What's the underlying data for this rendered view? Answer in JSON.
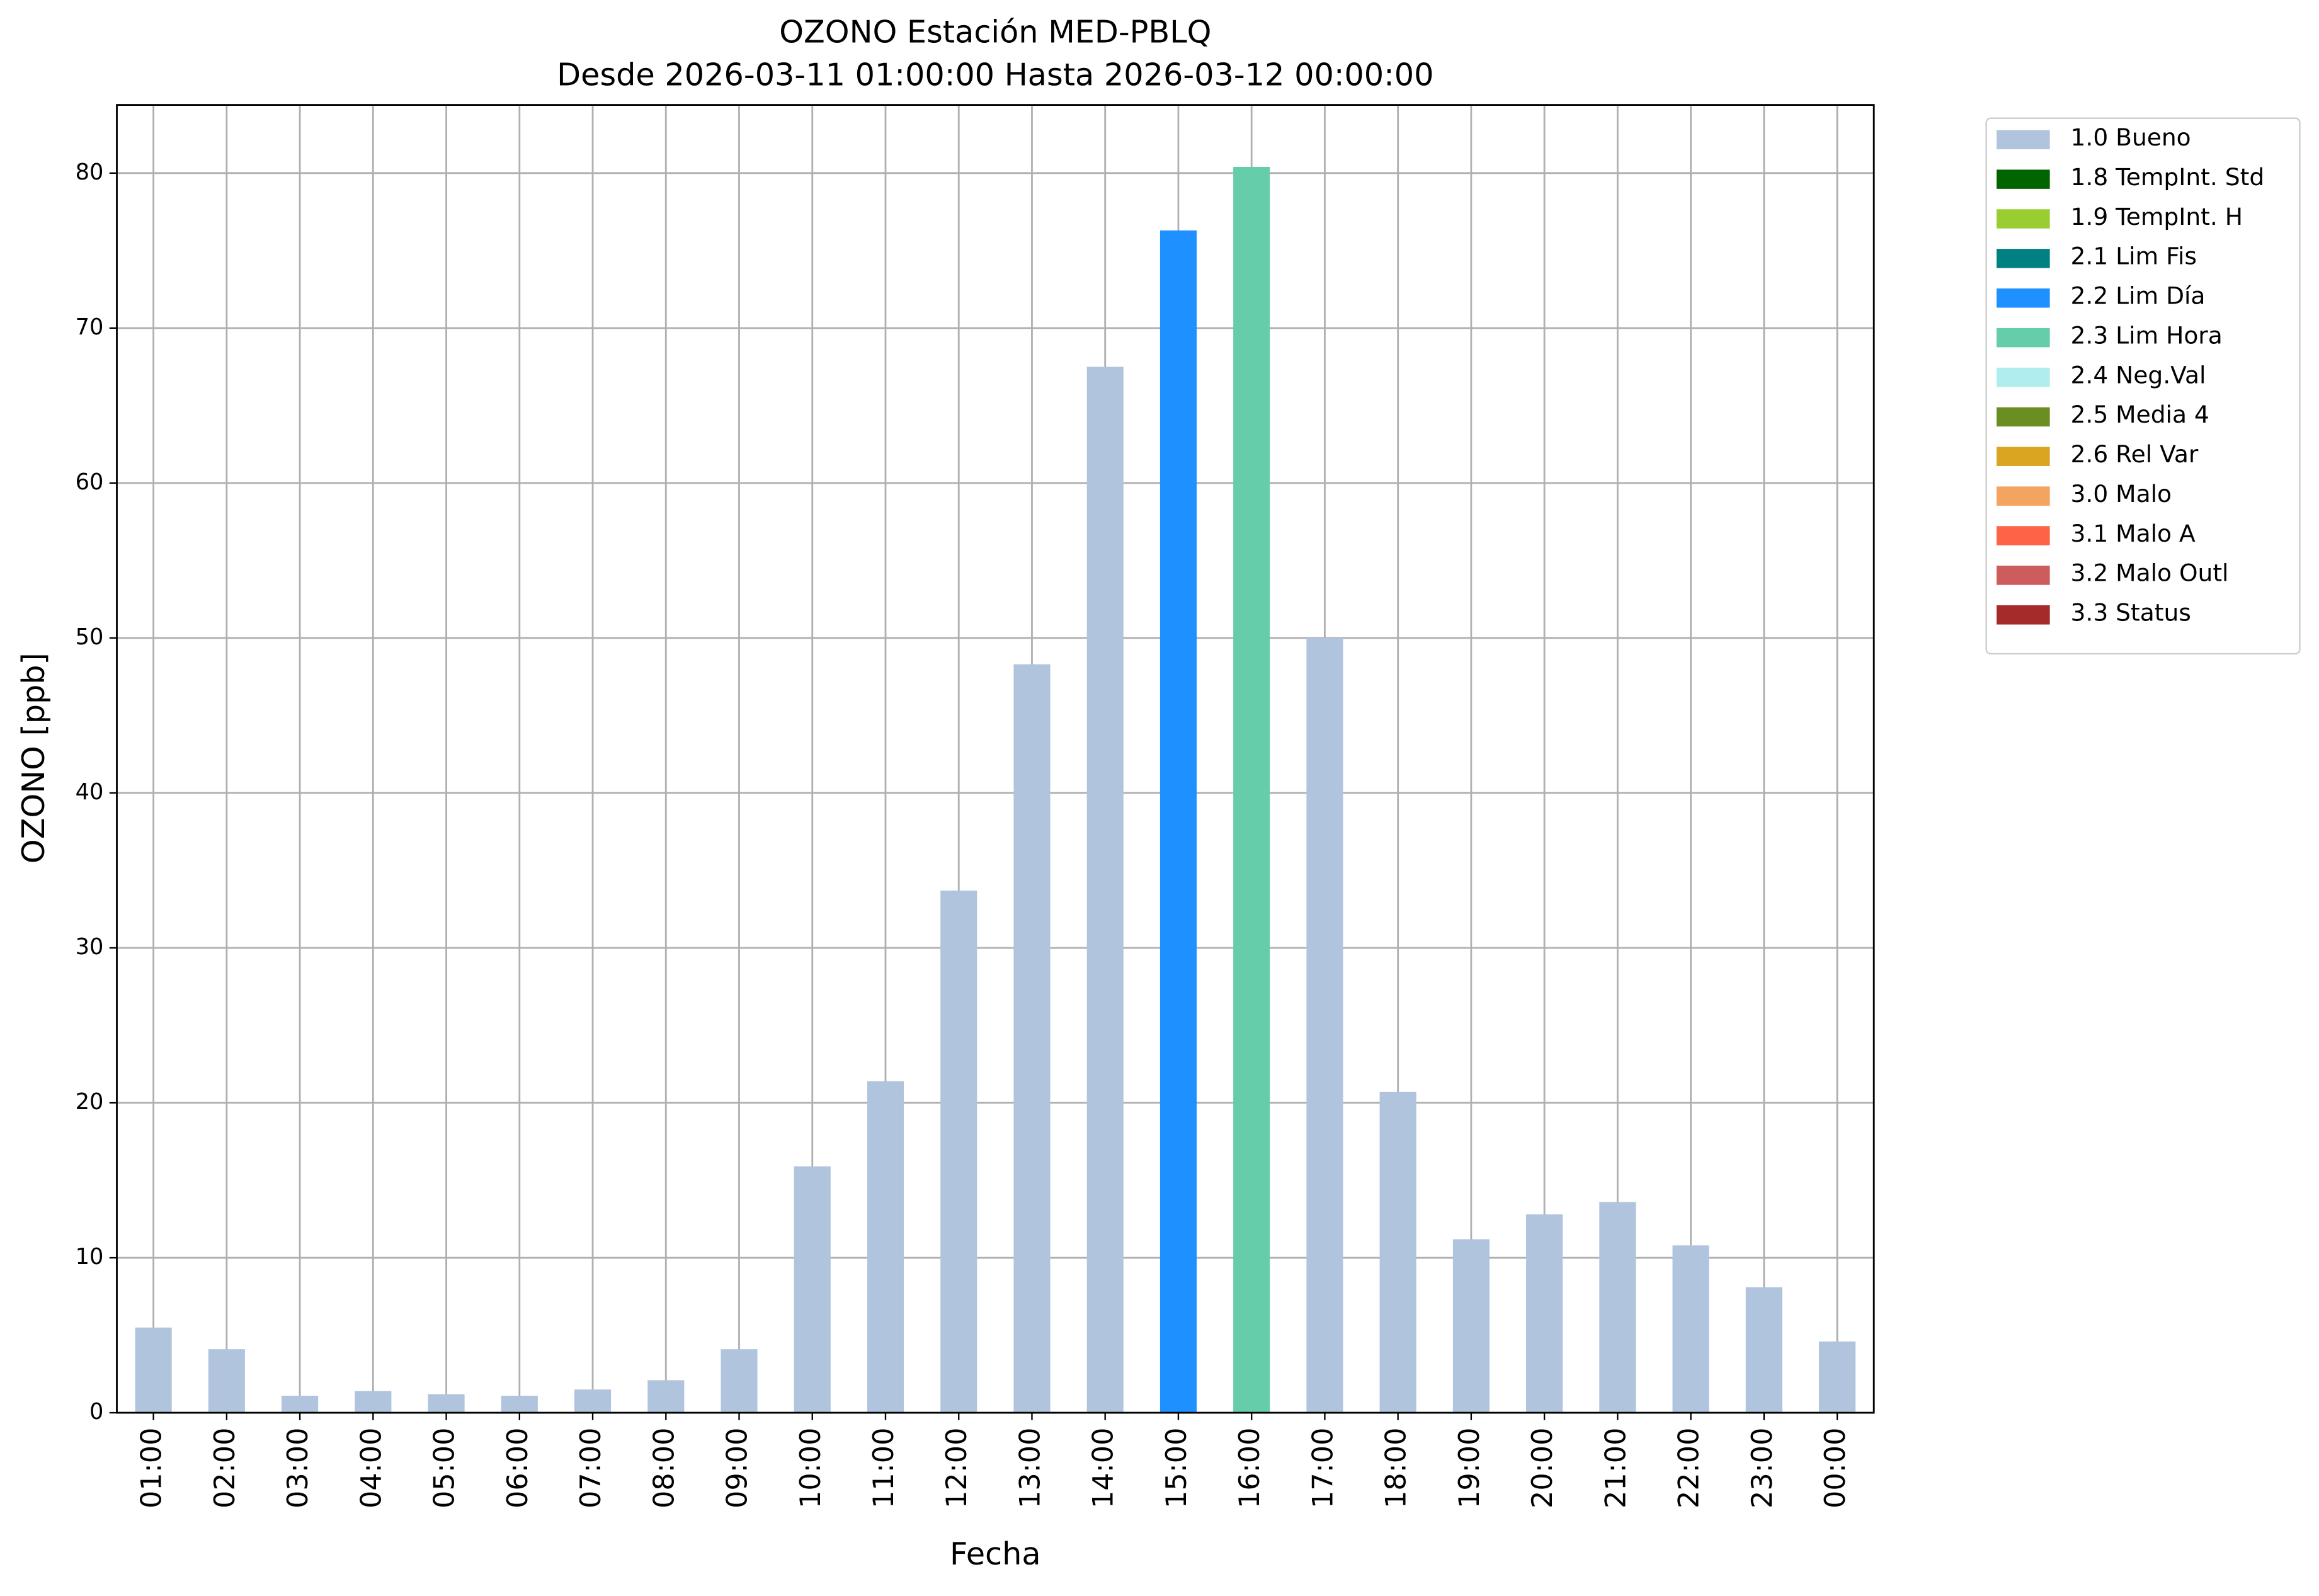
{
  "chart_data": {
    "type": "bar",
    "stacked": true,
    "title": "OZONO Estación MED-PBLQ",
    "subtitle": "Desde 2026-03-11 01:00:00 Hasta 2026-03-12 00:00:00",
    "x_label": "Fecha",
    "y_label": "OZONO [ppb]",
    "categories": [
      "01:00",
      "02:00",
      "03:00",
      "04:00",
      "05:00",
      "06:00",
      "07:00",
      "08:00",
      "09:00",
      "10:00",
      "11:00",
      "12:00",
      "13:00",
      "14:00",
      "15:00",
      "16:00",
      "17:00",
      "18:00",
      "19:00",
      "20:00",
      "21:00",
      "22:00",
      "23:00",
      "00:00"
    ],
    "series": [
      {
        "name": "1.0 Bueno",
        "color": "#b0c4de",
        "values": [
          5.5,
          4.1,
          1.1,
          1.4,
          1.2,
          1.1,
          1.5,
          2.1,
          4.1,
          15.9,
          21.4,
          33.7,
          48.3,
          67.5,
          null,
          null,
          50.0,
          20.7,
          11.2,
          12.8,
          13.6,
          10.8,
          8.1,
          4.6
        ]
      },
      {
        "name": "1.8 TempInt. Std",
        "color": "#006400",
        "values": [
          null,
          null,
          null,
          null,
          null,
          null,
          null,
          null,
          null,
          null,
          null,
          null,
          null,
          null,
          null,
          null,
          null,
          null,
          null,
          null,
          null,
          null,
          null,
          null
        ]
      },
      {
        "name": "1.9 TempInt. H",
        "color": "#9acd32",
        "values": [
          null,
          null,
          null,
          null,
          null,
          null,
          null,
          null,
          null,
          null,
          null,
          null,
          null,
          null,
          null,
          null,
          null,
          null,
          null,
          null,
          null,
          null,
          null,
          null
        ]
      },
      {
        "name": "2.1 Lim Fis",
        "color": "#008080",
        "values": [
          null,
          null,
          null,
          null,
          null,
          null,
          null,
          null,
          null,
          null,
          null,
          null,
          null,
          null,
          null,
          null,
          null,
          null,
          null,
          null,
          null,
          null,
          null,
          null
        ]
      },
      {
        "name": "2.2 Lim Día",
        "color": "#1e90ff",
        "values": [
          null,
          null,
          null,
          null,
          null,
          null,
          null,
          null,
          null,
          null,
          null,
          null,
          null,
          null,
          76.3,
          null,
          null,
          null,
          null,
          null,
          null,
          null,
          null,
          null
        ]
      },
      {
        "name": "2.3 Lim Hora",
        "color": "#66cdaa",
        "values": [
          null,
          null,
          null,
          null,
          null,
          null,
          null,
          null,
          null,
          null,
          null,
          null,
          null,
          null,
          null,
          80.4,
          null,
          null,
          null,
          null,
          null,
          null,
          null,
          null
        ]
      },
      {
        "name": "2.4 Neg.Val",
        "color": "#afeeee",
        "values": [
          null,
          null,
          null,
          null,
          null,
          null,
          null,
          null,
          null,
          null,
          null,
          null,
          null,
          null,
          null,
          null,
          null,
          null,
          null,
          null,
          null,
          null,
          null,
          null
        ]
      },
      {
        "name": "2.5 Media 4",
        "color": "#6b8e23",
        "values": [
          null,
          null,
          null,
          null,
          null,
          null,
          null,
          null,
          null,
          null,
          null,
          null,
          null,
          null,
          null,
          null,
          null,
          null,
          null,
          null,
          null,
          null,
          null,
          null
        ]
      },
      {
        "name": "2.6 Rel Var",
        "color": "#daa520",
        "values": [
          null,
          null,
          null,
          null,
          null,
          null,
          null,
          null,
          null,
          null,
          null,
          null,
          null,
          null,
          null,
          null,
          null,
          null,
          null,
          null,
          null,
          null,
          null,
          null
        ]
      },
      {
        "name": "3.0 Malo",
        "color": "#f4a460",
        "values": [
          null,
          null,
          null,
          null,
          null,
          null,
          null,
          null,
          null,
          null,
          null,
          null,
          null,
          null,
          null,
          null,
          null,
          null,
          null,
          null,
          null,
          null,
          null,
          null
        ]
      },
      {
        "name": "3.1 Malo A",
        "color": "#ff6347",
        "values": [
          null,
          null,
          null,
          null,
          null,
          null,
          null,
          null,
          null,
          null,
          null,
          null,
          null,
          null,
          null,
          null,
          null,
          null,
          null,
          null,
          null,
          null,
          null,
          null
        ]
      },
      {
        "name": "3.2 Malo Outl",
        "color": "#cd5c5c",
        "values": [
          null,
          null,
          null,
          null,
          null,
          null,
          null,
          null,
          null,
          null,
          null,
          null,
          null,
          null,
          null,
          null,
          null,
          null,
          null,
          null,
          null,
          null,
          null,
          null
        ]
      },
      {
        "name": "3.3 Status",
        "color": "#a52a2a",
        "values": [
          null,
          null,
          null,
          null,
          null,
          null,
          null,
          null,
          null,
          null,
          null,
          null,
          null,
          null,
          null,
          null,
          null,
          null,
          null,
          null,
          null,
          null,
          null,
          null
        ]
      }
    ],
    "ylim": [
      0,
      84.4
    ],
    "yticks": [
      0,
      10,
      20,
      30,
      40,
      50,
      60,
      70,
      80
    ],
    "grid": true,
    "legend": "outside-right"
  }
}
